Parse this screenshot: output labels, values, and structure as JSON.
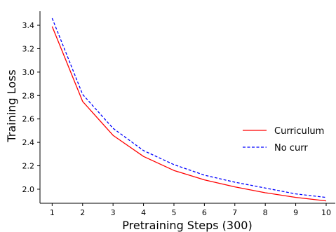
{
  "chart_data": {
    "type": "line",
    "title": "",
    "xlabel": "Pretraining Steps (300)",
    "ylabel": "Training Loss",
    "x": [
      1,
      2,
      3,
      4,
      5,
      6,
      7,
      8,
      9,
      10
    ],
    "xticks": [
      "1",
      "2",
      "3",
      "4",
      "5",
      "6",
      "7",
      "8",
      "9",
      "10"
    ],
    "yticks": [
      "2.0",
      "2.2",
      "2.4",
      "2.6",
      "2.8",
      "3.0",
      "3.2",
      "3.4"
    ],
    "ytick_values": [
      2.0,
      2.2,
      2.4,
      2.6,
      2.8,
      3.0,
      3.2,
      3.4
    ],
    "xlim": [
      0.6,
      10.3
    ],
    "ylim": [
      1.88,
      3.52
    ],
    "grid": false,
    "legend_position": "right",
    "series": [
      {
        "name": "Curriculum",
        "color": "#ff0000",
        "linestyle": "solid",
        "values": [
          3.39,
          2.75,
          2.46,
          2.28,
          2.16,
          2.08,
          2.02,
          1.97,
          1.93,
          1.9
        ]
      },
      {
        "name": "No curr",
        "color": "#0000ff",
        "linestyle": "dashed",
        "values": [
          3.46,
          2.81,
          2.52,
          2.33,
          2.21,
          2.12,
          2.06,
          2.01,
          1.96,
          1.93
        ]
      }
    ]
  }
}
